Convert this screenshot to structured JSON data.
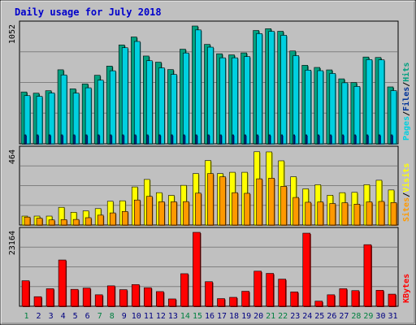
{
  "colors": {
    "pages": "#00d0e0",
    "pages_dark": "#007f88",
    "files": "#003399",
    "hits": "#00a080",
    "hits_dark": "#005a48",
    "sites": "#ff9900",
    "sites_dark": "#a05000",
    "visits": "#ffff00",
    "visits_dark": "#a0a000",
    "kbytes": "#ff0000",
    "kbytes_dark": "#800000",
    "weekday": "#000080",
    "weekend": "#008040"
  },
  "chart_data": {
    "type": "bar",
    "title": "Daily usage for July 2018",
    "categories": [
      "1",
      "2",
      "3",
      "4",
      "5",
      "6",
      "7",
      "8",
      "9",
      "10",
      "11",
      "12",
      "13",
      "14",
      "15",
      "16",
      "17",
      "18",
      "19",
      "20",
      "21",
      "22",
      "23",
      "24",
      "25",
      "26",
      "27",
      "28",
      "29",
      "30",
      "31"
    ],
    "weekend_days": [
      1,
      7,
      8,
      14,
      15,
      21,
      22,
      28,
      29
    ],
    "panels": [
      {
        "ymax_label": "1052",
        "ylim": [
          0,
          1052
        ],
        "legend": [
          {
            "text": "Pages",
            "color_key": "pages"
          },
          {
            "text": "/",
            "color_key": "sep"
          },
          {
            "text": "Files",
            "color_key": "files"
          },
          {
            "text": "/",
            "color_key": "sep"
          },
          {
            "text": "Hits",
            "color_key": "hits"
          }
        ],
        "series": [
          {
            "name": "Hits",
            "color_key": "hits",
            "values": [
              463,
              452,
              474,
              661,
              491,
              535,
              612,
              694,
              883,
              954,
              784,
              729,
              663,
              845,
              1052,
              888,
              804,
              794,
              812,
              1012,
              1028,
              1005,
              829,
              701,
              682,
              660,
              580,
              547,
              775,
              771,
              508
            ]
          },
          {
            "name": "Files",
            "color_key": "files",
            "values": [
              80,
              80,
              80,
              80,
              80,
              80,
              80,
              80,
              80,
              80,
              80,
              80,
              80,
              80,
              80,
              80,
              80,
              80,
              80,
              80,
              80,
              80,
              80,
              80,
              80,
              80,
              80,
              80,
              80,
              80,
              80
            ]
          },
          {
            "name": "Pages",
            "color_key": "pages",
            "values": [
              430,
              424,
              454,
              615,
              453,
              500,
              568,
              652,
              858,
              914,
              742,
              678,
              620,
              811,
              1017,
              863,
              768,
              768,
              779,
              984,
              1004,
              969,
              787,
              658,
              653,
              628,
              545,
              512,
              752,
              750,
              475
            ]
          }
        ]
      },
      {
        "ymax_label": "464",
        "ylim": [
          0,
          464
        ],
        "legend": [
          {
            "text": "Sites",
            "color_key": "sites"
          },
          {
            "text": "/",
            "color_key": "sep"
          },
          {
            "text": "Visits",
            "color_key": "visits"
          }
        ],
        "series": [
          {
            "name": "Visits",
            "color_key": "visits",
            "values": [
              56,
              56,
              56,
              111,
              80,
              89,
              103,
              149,
              152,
              239,
              286,
              203,
              186,
              249,
              323,
              405,
              323,
              331,
              331,
              460,
              459,
              403,
              303,
              227,
              253,
              187,
              203,
              205,
              253,
              281,
              220
            ]
          },
          {
            "name": "Sites",
            "color_key": "sites",
            "values": [
              50,
              43,
              32,
              34,
              35,
              46,
              62,
              76,
              85,
              157,
              180,
              146,
              146,
              147,
              200,
              323,
              303,
              203,
              199,
              290,
              294,
              243,
              173,
              143,
              145,
              135,
              140,
              131,
              145,
              148,
              141
            ]
          }
        ]
      },
      {
        "ymax_label": "23164",
        "ylim": [
          0,
          23164
        ],
        "legend": [
          {
            "text": "KBytes",
            "color_key": "kbytes"
          }
        ],
        "series": [
          {
            "name": "KBytes",
            "color_key": "kbytes",
            "values": [
              8000,
              3000,
              5500,
              14500,
              5300,
              5700,
              3600,
              6400,
              5200,
              6800,
              5800,
              4600,
              2300,
              10200,
              23164,
              7700,
              2400,
              2800,
              4700,
              11000,
              10300,
              8500,
              4500,
              22900,
              1600,
              3600,
              5500,
              4900,
              19300,
              5000,
              3800
            ]
          }
        ]
      }
    ]
  }
}
